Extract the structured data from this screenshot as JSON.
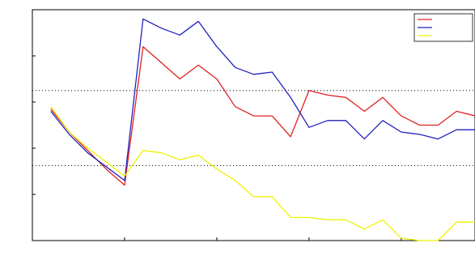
{
  "chart_data": {
    "type": "line",
    "title": "",
    "xlabel": "",
    "ylabel": "",
    "xlim": [
      0,
      24
    ],
    "ylim": [
      0,
      10
    ],
    "x_ticks": [
      0,
      5,
      10,
      15,
      20
    ],
    "y_ticks": [
      0,
      2,
      4,
      6,
      8,
      10
    ],
    "x_tick_labels": [
      "",
      "",
      "",
      "",
      ""
    ],
    "y_tick_labels": [
      "",
      "",
      "",
      "",
      "",
      ""
    ],
    "dotted_y_gridlines": [
      3.25,
      6.5
    ],
    "grid": false,
    "legend_position": "top-right",
    "x": [
      1,
      2,
      3,
      4,
      5,
      6,
      7,
      8,
      9,
      10,
      11,
      12,
      13,
      14,
      15,
      16,
      17,
      18,
      19,
      20,
      21,
      22,
      23,
      24
    ],
    "series": [
      {
        "name": "",
        "color": "#e02020",
        "values": [
          5.7,
          4.7,
          3.9,
          3.1,
          2.4,
          8.4,
          7.7,
          7.0,
          7.6,
          7.0,
          5.8,
          5.4,
          5.4,
          4.5,
          6.5,
          6.3,
          6.2,
          5.6,
          6.2,
          5.4,
          5.0,
          5.0,
          5.6,
          5.4
        ]
      },
      {
        "name": "",
        "color": "#2020c0",
        "values": [
          5.6,
          4.6,
          3.8,
          3.2,
          2.6,
          9.6,
          9.2,
          8.9,
          9.5,
          8.4,
          7.5,
          7.2,
          7.3,
          6.2,
          4.9,
          5.2,
          5.2,
          4.4,
          5.2,
          4.7,
          4.6,
          4.4,
          4.8,
          4.8
        ]
      },
      {
        "name": "",
        "color": "#f0f000",
        "values": [
          5.8,
          4.7,
          4.0,
          3.4,
          2.8,
          3.9,
          3.8,
          3.5,
          3.7,
          3.1,
          2.6,
          1.9,
          1.9,
          1.0,
          1.0,
          0.9,
          0.9,
          0.5,
          0.9,
          0.1,
          0.0,
          0.0,
          0.8,
          0.8
        ]
      }
    ]
  }
}
